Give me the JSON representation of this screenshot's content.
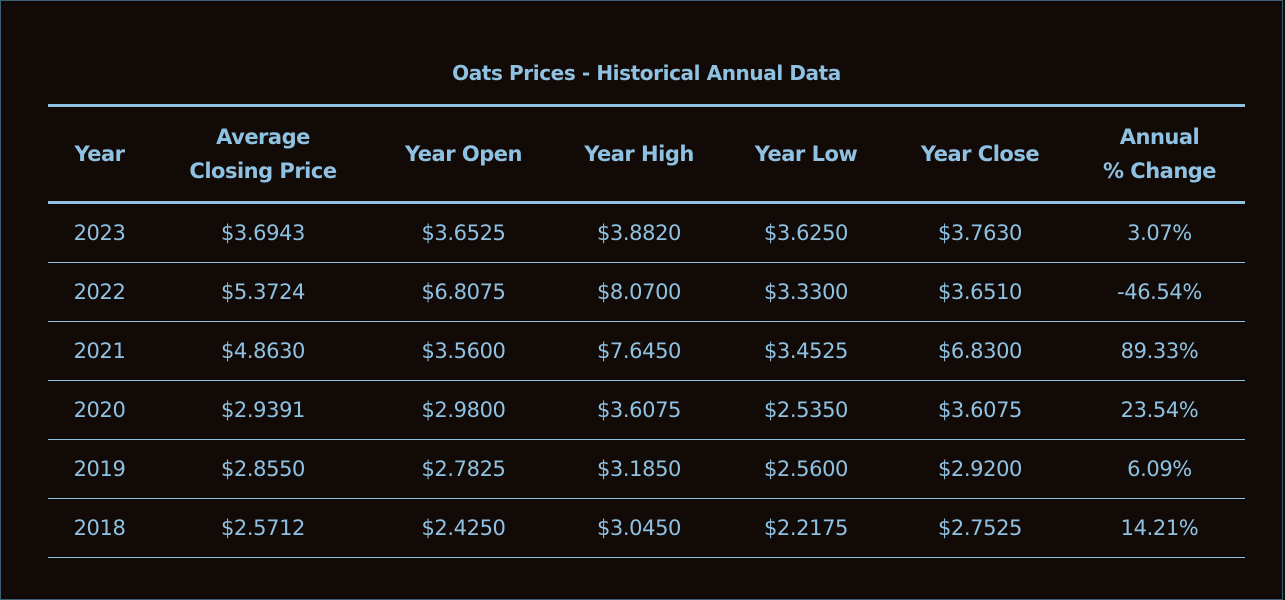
{
  "caption": "Oats Prices - Historical Annual Data",
  "columns": [
    {
      "lines": [
        "Year"
      ]
    },
    {
      "lines": [
        "Average",
        "Closing Price"
      ]
    },
    {
      "lines": [
        "Year Open"
      ]
    },
    {
      "lines": [
        "Year High"
      ]
    },
    {
      "lines": [
        "Year Low"
      ]
    },
    {
      "lines": [
        "Year Close"
      ]
    },
    {
      "lines": [
        "Annual",
        "% Change"
      ]
    }
  ],
  "rows": [
    [
      "2023",
      "$3.6943",
      "$3.6525",
      "$3.8820",
      "$3.6250",
      "$3.7630",
      "3.07%"
    ],
    [
      "2022",
      "$5.3724",
      "$6.8075",
      "$8.0700",
      "$3.3300",
      "$3.6510",
      "-46.54%"
    ],
    [
      "2021",
      "$4.8630",
      "$3.5600",
      "$7.6450",
      "$3.4525",
      "$6.8300",
      "89.33%"
    ],
    [
      "2020",
      "$2.9391",
      "$2.9800",
      "$3.6075",
      "$2.5350",
      "$3.6075",
      "23.54%"
    ],
    [
      "2019",
      "$2.8550",
      "$2.7825",
      "$3.1850",
      "$2.5600",
      "$2.9200",
      "6.09%"
    ],
    [
      "2018",
      "$2.5712",
      "$2.4250",
      "$3.0450",
      "$2.2175",
      "$2.7525",
      "14.21%"
    ]
  ],
  "colors": {
    "background": "#120a07",
    "text": "#8fc2e2"
  }
}
